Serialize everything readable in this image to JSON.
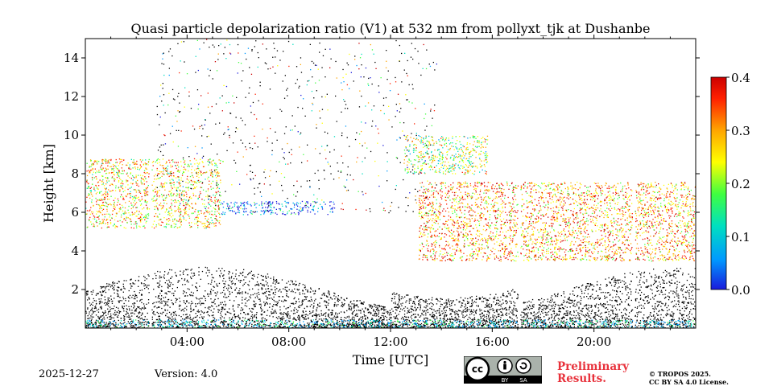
{
  "chart_data": {
    "type": "heatmap",
    "title": "Quasi particle depolarization ratio (V1) at 532 nm from pollyxt_tjk at Dushanbe",
    "xlabel": "Time [UTC]",
    "ylabel": "Height [km]",
    "xlim_hours": [
      0,
      24
    ],
    "ylim_km": [
      0,
      15
    ],
    "x_ticks": [
      {
        "value": 4,
        "label": "04:00"
      },
      {
        "value": 8,
        "label": "08:00"
      },
      {
        "value": 12,
        "label": "12:00"
      },
      {
        "value": 16,
        "label": "16:00"
      },
      {
        "value": 20,
        "label": "20:00"
      }
    ],
    "y_ticks": [
      {
        "value": 2,
        "label": "2"
      },
      {
        "value": 4,
        "label": "4"
      },
      {
        "value": 6,
        "label": "6"
      },
      {
        "value": 8,
        "label": "8"
      },
      {
        "value": 10,
        "label": "10"
      },
      {
        "value": 12,
        "label": "12"
      },
      {
        "value": 14,
        "label": "14"
      }
    ],
    "colorbar": {
      "range": [
        0,
        0.4
      ],
      "ticks": [
        {
          "value": 0.0,
          "label": "0.0"
        },
        {
          "value": 0.1,
          "label": "0.1"
        },
        {
          "value": 0.2,
          "label": "0.2"
        },
        {
          "value": 0.3,
          "label": "0.3"
        },
        {
          "value": 0.4,
          "label": "0.4"
        }
      ],
      "colors": [
        "#1a1adc",
        "#0099ff",
        "#00e0c0",
        "#40ff40",
        "#ffff00",
        "#ffa500",
        "#ff2000",
        "#cc0000"
      ]
    },
    "layers": [
      {
        "name": "dust-layer-morning",
        "t_start": 0.0,
        "t_end": 5.3,
        "h_bottom": 5.2,
        "h_top": 8.8,
        "ratio": 0.25
      },
      {
        "name": "cloud-layer",
        "t_start": 5.3,
        "t_end": 9.8,
        "h_bottom": 5.9,
        "h_top": 6.6,
        "ratio": 0.05
      },
      {
        "name": "dust-layer-afternoon",
        "t_start": 13.1,
        "t_end": 24.0,
        "h_bottom": 3.5,
        "h_top": 7.6,
        "ratio": 0.28
      },
      {
        "name": "high-layer",
        "t_start": 12.5,
        "t_end": 15.8,
        "h_bottom": 8.0,
        "h_top": 10.0,
        "ratio": 0.2
      }
    ],
    "data_gaps_hours": [
      2.55,
      17.05,
      21.55
    ]
  },
  "footer": {
    "date": "2025-12-27",
    "version": "Version: 4.0",
    "preliminary_line1": "Preliminary",
    "preliminary_line2": "Results.",
    "copyright_line1": "© TROPOS 2025.",
    "copyright_line2": "CC BY SA 4.0 License.",
    "cc_label_by": "BY",
    "cc_label_sa": "SA"
  }
}
